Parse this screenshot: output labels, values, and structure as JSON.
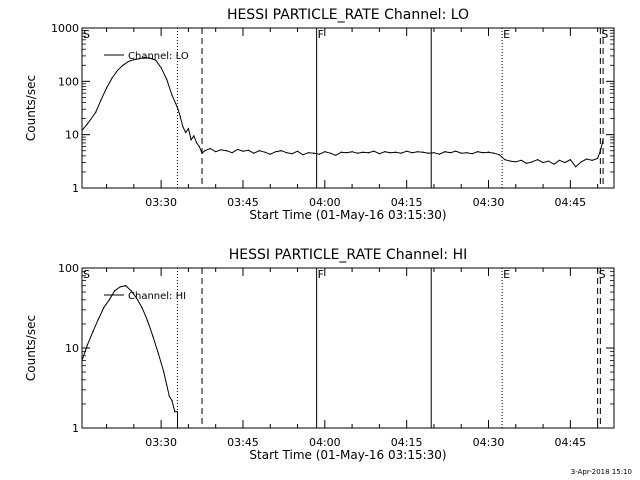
{
  "footer": {
    "timestamp": "3-Apr-2018 15:10"
  },
  "chart_data": [
    {
      "type": "line",
      "title": "HESSI PARTICLE_RATE Channel: LO",
      "xlabel": "Start Time (01-May-16 03:15:30)",
      "ylabel": "Counts/sec",
      "yscale": "log",
      "xlim": [
        "03:15:30",
        "04:53:00"
      ],
      "ylim": [
        1,
        1000
      ],
      "x_ticks": [
        "03:30",
        "03:45",
        "04:00",
        "04:15",
        "04:30",
        "04:45"
      ],
      "y_ticks": [
        1,
        10,
        100,
        1000
      ],
      "y_tick_labels": [
        "1",
        "10",
        "100",
        "1000"
      ],
      "legend": {
        "placement": "top-left",
        "entries": [
          "Channel: LO"
        ]
      },
      "grid": false,
      "markers": [
        {
          "label": "S",
          "time": "03:15:30",
          "style": "none"
        },
        {
          "label": "",
          "time": "03:33:00",
          "style": "dotted"
        },
        {
          "label": "",
          "time": "03:37:30",
          "style": "dashed"
        },
        {
          "label": "F",
          "time": "03:58:30",
          "style": "solid"
        },
        {
          "label": "",
          "time": "04:19:30",
          "style": "solid"
        },
        {
          "label": "E",
          "time": "04:32:30",
          "style": "dotted"
        },
        {
          "label": "S",
          "time": "04:50:30",
          "style": "dashed"
        },
        {
          "label": "",
          "time": "04:51:00",
          "style": "dashed"
        }
      ],
      "series": [
        {
          "name": "Channel: LO",
          "x": [
            "03:15:30",
            "03:16:30",
            "03:18:00",
            "03:19:00",
            "03:20:00",
            "03:21:00",
            "03:22:00",
            "03:23:00",
            "03:24:00",
            "03:25:00",
            "03:26:00",
            "03:27:00",
            "03:28:00",
            "03:29:00",
            "03:30:00",
            "03:31:00",
            "03:32:00",
            "03:33:00",
            "03:33:30",
            "03:34:00",
            "03:34:30",
            "03:35:00",
            "03:35:30",
            "03:36:00",
            "03:36:30",
            "03:37:00",
            "03:37:30",
            "03:38:00",
            "03:39:00",
            "03:40:00",
            "03:41:00",
            "03:42:00",
            "03:43:00",
            "03:44:00",
            "03:45:00",
            "03:46:00",
            "03:47:00",
            "03:48:00",
            "03:49:00",
            "03:50:00",
            "03:51:00",
            "03:52:00",
            "03:53:00",
            "03:54:00",
            "03:55:00",
            "03:56:00",
            "03:57:00",
            "03:58:00",
            "03:59:00",
            "04:00:00",
            "04:01:00",
            "04:02:00",
            "04:03:00",
            "04:04:00",
            "04:05:00",
            "04:06:00",
            "04:07:00",
            "04:08:00",
            "04:09:00",
            "04:10:00",
            "04:11:00",
            "04:12:00",
            "04:13:00",
            "04:14:00",
            "04:15:00",
            "04:16:00",
            "04:17:00",
            "04:18:00",
            "04:19:00",
            "04:20:00",
            "04:21:00",
            "04:22:00",
            "04:23:00",
            "04:24:00",
            "04:25:00",
            "04:26:00",
            "04:27:00",
            "04:28:00",
            "04:29:00",
            "04:30:00",
            "04:31:00",
            "04:32:00",
            "04:33:00",
            "04:34:00",
            "04:35:00",
            "04:36:00",
            "04:37:00",
            "04:38:00",
            "04:39:00",
            "04:40:00",
            "04:41:00",
            "04:42:00",
            "04:43:00",
            "04:44:00",
            "04:45:00",
            "04:46:00",
            "04:47:00",
            "04:48:00",
            "04:49:00",
            "04:50:00",
            "04:50:30",
            "04:51:00"
          ],
          "y": [
            12,
            16,
            26,
            45,
            75,
            115,
            160,
            200,
            235,
            255,
            265,
            280,
            270,
            250,
            180,
            110,
            55,
            32,
            22,
            14,
            11,
            13,
            8,
            9.5,
            7,
            6,
            4.5,
            5,
            5.5,
            4.8,
            5.2,
            5,
            4.6,
            5.3,
            4.9,
            5.1,
            4.5,
            5,
            4.7,
            4.3,
            4.8,
            5,
            4.6,
            4.4,
            4.9,
            4.2,
            4.6,
            4.5,
            4.3,
            4.8,
            4.5,
            4.1,
            4.7,
            4.6,
            4.8,
            4.5,
            4.7,
            4.6,
            4.9,
            4.4,
            4.8,
            4.6,
            4.7,
            4.5,
            4.9,
            4.6,
            4.8,
            4.7,
            4.5,
            4.6,
            4.3,
            4.8,
            4.6,
            4.9,
            4.5,
            4.6,
            4.4,
            4.8,
            4.6,
            4.7,
            4.5,
            4.2,
            3.4,
            3.2,
            3.1,
            3.3,
            2.9,
            3.1,
            3.4,
            3,
            3.2,
            2.8,
            3.3,
            3,
            3.4,
            2.5,
            3.1,
            3.5,
            3.3,
            3.6,
            5,
            8
          ]
        }
      ]
    },
    {
      "type": "line",
      "title": "HESSI PARTICLE_RATE Channel: HI",
      "xlabel": "Start Time (01-May-16 03:15:30)",
      "ylabel": "Counts/sec",
      "yscale": "log",
      "xlim": [
        "03:15:30",
        "04:53:00"
      ],
      "ylim": [
        1,
        100
      ],
      "x_ticks": [
        "03:30",
        "03:45",
        "04:00",
        "04:15",
        "04:30",
        "04:45"
      ],
      "y_ticks": [
        1,
        10,
        100
      ],
      "y_tick_labels": [
        "1",
        "10",
        "100"
      ],
      "legend": {
        "placement": "top-left",
        "entries": [
          "Channel: HI"
        ]
      },
      "grid": false,
      "markers": [
        {
          "label": "S",
          "time": "03:15:30",
          "style": "none"
        },
        {
          "label": "",
          "time": "03:33:00",
          "style": "dotted"
        },
        {
          "label": "",
          "time": "03:37:30",
          "style": "dashed"
        },
        {
          "label": "F",
          "time": "03:58:30",
          "style": "solid"
        },
        {
          "label": "",
          "time": "04:19:30",
          "style": "solid"
        },
        {
          "label": "E",
          "time": "04:32:30",
          "style": "dotted"
        },
        {
          "label": "S",
          "time": "04:50:00",
          "style": "dashed"
        },
        {
          "label": "",
          "time": "04:50:30",
          "style": "dashed"
        }
      ],
      "series": [
        {
          "name": "Channel: HI",
          "x": [
            "03:15:30",
            "03:16:30",
            "03:17:30",
            "03:18:30",
            "03:19:30",
            "03:20:30",
            "03:21:30",
            "03:22:30",
            "03:23:30",
            "03:24:30",
            "03:25:30",
            "03:26:30",
            "03:27:30",
            "03:28:30",
            "03:29:30",
            "03:30:30",
            "03:31:00",
            "03:31:30",
            "03:32:00",
            "03:32:30",
            "03:33:00",
            "03:33:00"
          ],
          "y": [
            7,
            11,
            16,
            23,
            32,
            40,
            52,
            58,
            60,
            52,
            42,
            32,
            22,
            14,
            8.5,
            5,
            3.5,
            2.5,
            2.2,
            1.6,
            1.6,
            1
          ]
        }
      ]
    }
  ]
}
